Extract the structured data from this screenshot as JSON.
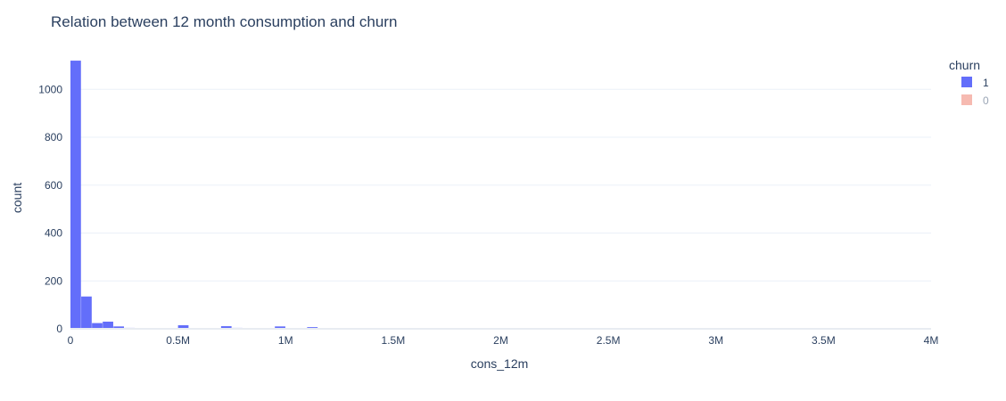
{
  "chart_data": {
    "type": "bar",
    "title": "Relation between 12 month consumption and churn",
    "xlabel": "cons_12m",
    "ylabel": "count",
    "xlim": [
      0,
      4000000
    ],
    "ylim": [
      0,
      1150
    ],
    "x_ticks": [
      "0",
      "0.5M",
      "1M",
      "1.5M",
      "2M",
      "2.5M",
      "3M",
      "3.5M",
      "4M"
    ],
    "y_ticks": [
      "0",
      "200",
      "400",
      "600",
      "800",
      "1000"
    ],
    "grid": true,
    "legend_position": "top-right",
    "legend_title": "churn",
    "series": [
      {
        "name": "1",
        "color": "#636efa",
        "visible": true,
        "bin_width": 50000,
        "bins": [
          {
            "x0": 0,
            "count": 1120
          },
          {
            "x0": 50000,
            "count": 135
          },
          {
            "x0": 100000,
            "count": 24
          },
          {
            "x0": 150000,
            "count": 30
          },
          {
            "x0": 200000,
            "count": 10
          },
          {
            "x0": 250000,
            "count": 4
          },
          {
            "x0": 300000,
            "count": 3
          },
          {
            "x0": 350000,
            "count": 2
          },
          {
            "x0": 500000,
            "count": 15
          },
          {
            "x0": 550000,
            "count": 3
          },
          {
            "x0": 700000,
            "count": 11
          },
          {
            "x0": 750000,
            "count": 4
          },
          {
            "x0": 900000,
            "count": 3
          },
          {
            "x0": 950000,
            "count": 10
          },
          {
            "x0": 1100000,
            "count": 7
          },
          {
            "x0": 1150000,
            "count": 3
          },
          {
            "x0": 1450000,
            "count": 3
          }
        ]
      },
      {
        "name": "0",
        "color": "#f4a99e",
        "visible": false,
        "bins": []
      }
    ]
  }
}
